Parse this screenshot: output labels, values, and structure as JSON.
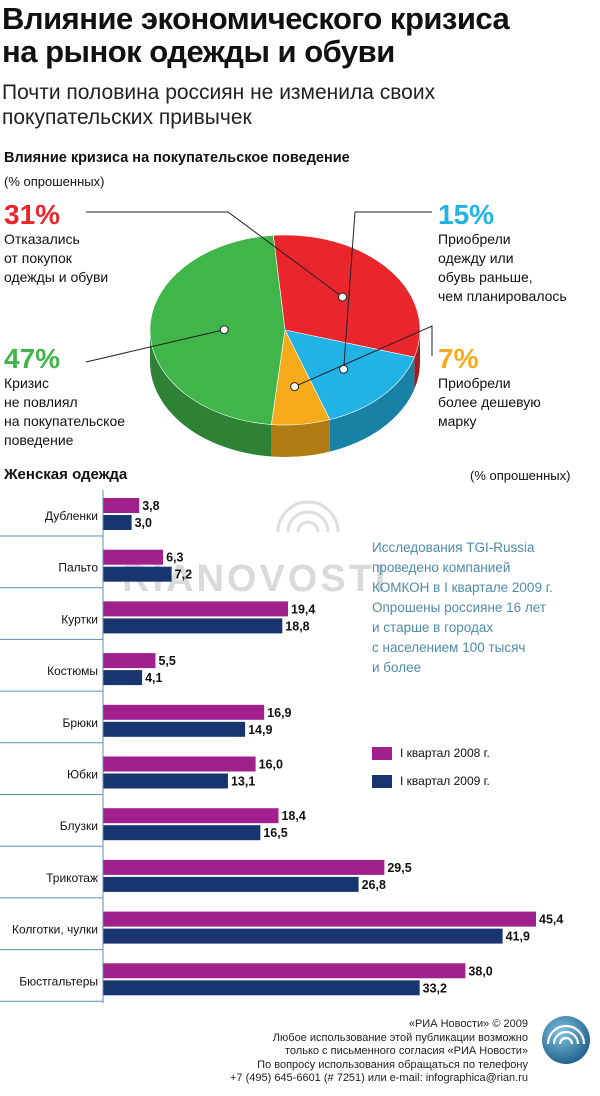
{
  "header": {
    "title_line1": "Влияние экономического кризиса",
    "title_line2": "на рынок одежды и обуви",
    "subtitle_line1": "Почти половина россиян не изменила своих",
    "subtitle_line2": "покупательских привычек"
  },
  "colors": {
    "red": "#e8262b",
    "blue": "#22b3e6",
    "orange": "#f6ab1b",
    "green": "#3fb54a",
    "purple": "#a0208c",
    "navy": "#18356f",
    "note": "#4f8cab"
  },
  "pie": {
    "title": "Влияние кризиса на покупательское поведение",
    "unit": "(% опрошенных)",
    "labels": [
      {
        "value": "31%",
        "lines": [
          "Отказались",
          "от покупок",
          "одежды и обуви"
        ]
      },
      {
        "value": "15%",
        "lines": [
          "Приобрели",
          "одежду или",
          "обувь раньше,",
          "чем планировалось"
        ]
      },
      {
        "value": "7%",
        "lines": [
          "Приобрели",
          "более дешевую",
          "марку"
        ]
      },
      {
        "value": "47%",
        "lines": [
          "Кризис",
          "не повлиял",
          "на покупательское",
          "поведение"
        ]
      }
    ]
  },
  "bars": {
    "title": "Женская одежда",
    "unit": "(% опрошенных)",
    "legend": [
      "I квартал 2008 г.",
      "I квартал 2009 г."
    ],
    "note_lines": [
      "Исследования TGI-Russia",
      "проведено компанией",
      "КОМКОН в I квартале 2009 г.",
      "Опрошены россияне 16 лет",
      "и старше в городах",
      "с населением 100 тысяч",
      "и более"
    ]
  },
  "chart_data": [
    {
      "type": "pie",
      "title": "Влияние кризиса на покупательское поведение",
      "unit": "(% опрошенных)",
      "slices": [
        {
          "label": "Отказались от покупок одежды и обуви",
          "value": 31,
          "color": "#e8262b"
        },
        {
          "label": "Приобрели одежду или обувь раньше, чем планировалось",
          "value": 15,
          "color": "#22b3e6"
        },
        {
          "label": "Приобрели более дешевую марку",
          "value": 7,
          "color": "#f6ab1b"
        },
        {
          "label": "Кризис не повлиял на покупательское поведение",
          "value": 47,
          "color": "#3fb54a"
        }
      ]
    },
    {
      "type": "bar",
      "orientation": "horizontal",
      "title": "Женская одежда",
      "unit": "(% опрошенных)",
      "categories": [
        "Дубленки",
        "Пальто",
        "Куртки",
        "Костюмы",
        "Брюки",
        "Юбки",
        "Блузки",
        "Трикотаж",
        "Колготки, чулки",
        "Бюстгальтеры"
      ],
      "labels_2008": [
        "3,8",
        "6,3",
        "19,4",
        "5,5",
        "16,9",
        "16,0",
        "18,4",
        "29,5",
        "45,4",
        "38,0"
      ],
      "labels_2009": [
        "3,0",
        "7,2",
        "18,8",
        "4,1",
        "14,9",
        "13,1",
        "16,5",
        "26,8",
        "41,9",
        "33,2"
      ],
      "series": [
        {
          "name": "I квартал 2008 г.",
          "color": "#a0208c",
          "values": [
            3.8,
            6.3,
            19.4,
            5.5,
            16.9,
            16.0,
            18.4,
            29.5,
            45.4,
            38.0
          ]
        },
        {
          "name": "I квартал 2009 г.",
          "color": "#18356f",
          "values": [
            3.0,
            7.2,
            18.8,
            4.1,
            14.9,
            13.1,
            16.5,
            26.8,
            41.9,
            33.2
          ]
        }
      ],
      "xlim": [
        0,
        45.4
      ],
      "legend_position": "right"
    }
  ],
  "footer": {
    "lines": [
      "«РИА Новости» © 2009",
      "Любое использование этой публикации возможно",
      "только с письменного согласия «РИА Новости»",
      "По вопросу использования обращаться по телефону",
      "+7 (495) 645-6601 (# 7251) или e-mail: infographica@rian.ru"
    ]
  },
  "watermark": "RIANOVOSTI"
}
